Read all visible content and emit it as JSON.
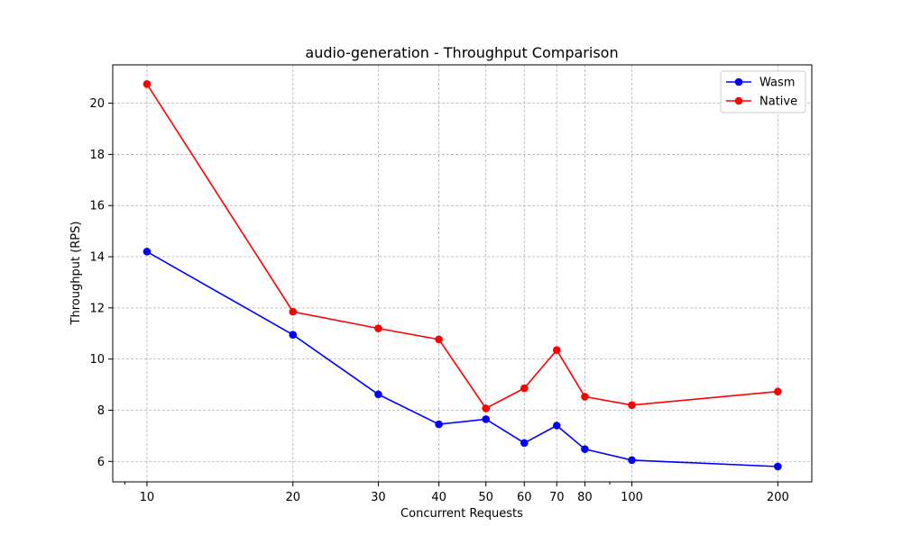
{
  "chart_data": {
    "type": "line",
    "title": "audio-generation - Throughput Comparison",
    "xlabel": "Concurrent Requests",
    "ylabel": "Throughput (RPS)",
    "x_scale": "log",
    "xlim": [
      8.5,
      235
    ],
    "ylim": [
      5.2,
      21.5
    ],
    "x": [
      10,
      20,
      30,
      40,
      50,
      60,
      70,
      80,
      100,
      200
    ],
    "x_ticks": [
      10,
      20,
      30,
      40,
      50,
      60,
      70,
      80,
      100,
      200
    ],
    "x_tick_labels": [
      "10",
      "20",
      "30",
      "40",
      "50",
      "60",
      "70",
      "80",
      "100",
      "200"
    ],
    "y_ticks": [
      6,
      8,
      10,
      12,
      14,
      16,
      18,
      20
    ],
    "y_tick_labels": [
      "6",
      "8",
      "10",
      "12",
      "14",
      "16",
      "18",
      "20"
    ],
    "grid": true,
    "legend_position": "top-right",
    "series": [
      {
        "name": "Wasm",
        "color": "#0000ff",
        "marker": "circle",
        "values": [
          14.2,
          10.95,
          8.62,
          7.45,
          7.65,
          6.72,
          7.4,
          6.48,
          6.05,
          5.8
        ]
      },
      {
        "name": "Native",
        "color": "#ff0000",
        "marker": "circle",
        "values": [
          20.75,
          11.85,
          11.2,
          10.77,
          8.07,
          8.86,
          10.35,
          8.53,
          8.2,
          8.73
        ]
      }
    ]
  }
}
